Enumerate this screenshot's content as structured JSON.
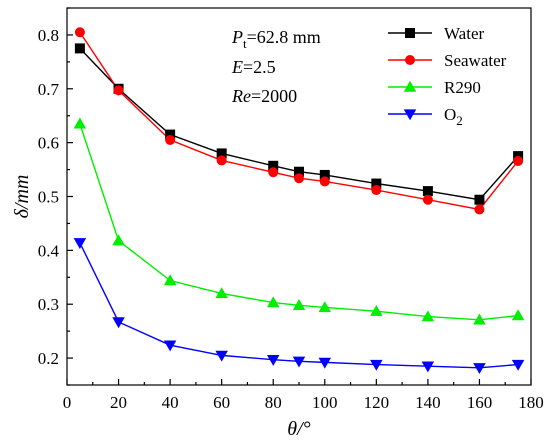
{
  "chart_data": {
    "type": "line",
    "xlabel": "θ/°",
    "ylabel": "δ/mm",
    "xlim": [
      0,
      180
    ],
    "ylim": [
      0.15,
      0.85
    ],
    "xticks": [
      0,
      20,
      40,
      60,
      80,
      100,
      120,
      140,
      160,
      180
    ],
    "yticks": [
      0.2,
      0.3,
      0.4,
      0.5,
      0.6,
      0.7,
      0.8
    ],
    "x": [
      5,
      20,
      40,
      60,
      80,
      90,
      100,
      120,
      140,
      160,
      175
    ],
    "legend_position": "top-right",
    "grid": false,
    "series": [
      {
        "name": "Water",
        "color": "#000000",
        "marker": "square",
        "values": [
          0.775,
          0.7,
          0.615,
          0.58,
          0.557,
          0.546,
          0.54,
          0.524,
          0.51,
          0.494,
          0.575
        ]
      },
      {
        "name": "Seawater",
        "color": "#ff0000",
        "marker": "circle",
        "values": [
          0.805,
          0.697,
          0.605,
          0.567,
          0.545,
          0.534,
          0.528,
          0.512,
          0.494,
          0.476,
          0.566
        ]
      },
      {
        "name": "R290",
        "color": "#00ee00",
        "marker": "triangle-up",
        "values": [
          0.635,
          0.418,
          0.344,
          0.32,
          0.303,
          0.298,
          0.294,
          0.287,
          0.277,
          0.271,
          0.279
        ]
      },
      {
        "name": "O2",
        "name_main": "O",
        "name_sub": "2",
        "color": "#0000ff",
        "marker": "triangle-down",
        "values": [
          0.414,
          0.267,
          0.224,
          0.205,
          0.197,
          0.194,
          0.192,
          0.188,
          0.185,
          0.182,
          0.188
        ]
      }
    ],
    "annotations": {
      "pt": {
        "symbol": "P",
        "sub": "t",
        "value": "=62.8 mm"
      },
      "e": {
        "symbol": "E",
        "value": "=2.5"
      },
      "re": {
        "symbol": "Re",
        "value": "=2000"
      }
    }
  }
}
